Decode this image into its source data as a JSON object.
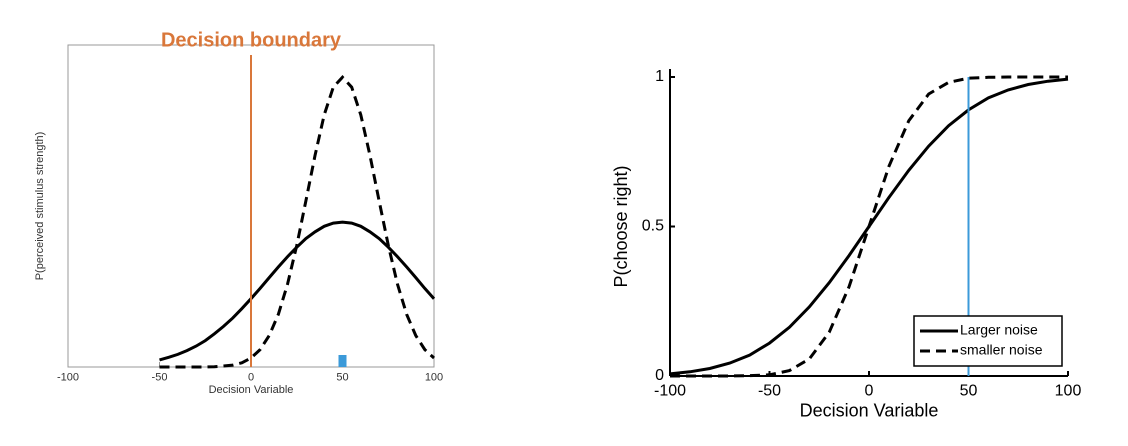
{
  "chart_data": [
    {
      "type": "line",
      "annotation": "Decision boundary",
      "xlabel": "Decision Variable",
      "ylabel": "P(perceived stimulus strength)",
      "x": [
        -50,
        -45,
        -40,
        -35,
        -30,
        -25,
        -20,
        -15,
        -10,
        -5,
        0,
        5,
        10,
        15,
        20,
        25,
        30,
        35,
        40,
        45,
        50,
        55,
        60,
        65,
        70,
        75,
        80,
        85,
        90,
        95,
        100
      ],
      "series": [
        {
          "style": "solid",
          "color": "#000000",
          "values": [
            0.022,
            0.03,
            0.039,
            0.051,
            0.065,
            0.082,
            0.103,
            0.126,
            0.152,
            0.181,
            0.212,
            0.244,
            0.278,
            0.311,
            0.343,
            0.372,
            0.399,
            0.42,
            0.437,
            0.447,
            0.45,
            0.447,
            0.437,
            0.42,
            0.399,
            0.372,
            0.343,
            0.311,
            0.278,
            0.244,
            0.212
          ]
        },
        {
          "style": "dashed",
          "color": "#000000",
          "values": [
            0,
            0,
            0,
            0,
            0,
            0,
            0.001,
            0.003,
            0.006,
            0.013,
            0.028,
            0.054,
            0.098,
            0.164,
            0.258,
            0.378,
            0.516,
            0.658,
            0.783,
            0.869,
            0.9,
            0.869,
            0.783,
            0.658,
            0.516,
            0.378,
            0.258,
            0.164,
            0.098,
            0.054,
            0.028
          ]
        }
      ],
      "vline": {
        "x": 0,
        "color": "#d9773a"
      },
      "marker": {
        "x": 50,
        "color": "#3b9ad9"
      },
      "xlim": [
        -100,
        100
      ],
      "ylim": [
        0,
        1
      ],
      "xticks": [
        -100,
        -50,
        0,
        50,
        100
      ]
    },
    {
      "type": "line",
      "xlabel": "Decision Variable",
      "ylabel": "P(choose right)",
      "x": [
        -100,
        -90,
        -80,
        -70,
        -60,
        -50,
        -40,
        -30,
        -20,
        -10,
        0,
        10,
        20,
        30,
        40,
        50,
        60,
        70,
        80,
        90,
        100
      ],
      "series": [
        {
          "name": "Larger noise",
          "style": "solid",
          "color": "#000000",
          "values": [
            0.007,
            0.014,
            0.025,
            0.043,
            0.07,
            0.11,
            0.163,
            0.231,
            0.312,
            0.403,
            0.5,
            0.597,
            0.688,
            0.769,
            0.837,
            0.89,
            0.93,
            0.957,
            0.975,
            0.986,
            0.993
          ]
        },
        {
          "name": "smaller noise",
          "style": "dashed",
          "color": "#000000",
          "values": [
            0,
            0,
            0,
            0,
            0.001,
            0.004,
            0.018,
            0.057,
            0.146,
            0.299,
            0.5,
            0.701,
            0.854,
            0.943,
            0.982,
            0.996,
            0.999,
            1,
            1,
            1,
            1
          ]
        }
      ],
      "vline": {
        "x": 50,
        "color": "#3b9ad9"
      },
      "legend": "lower right",
      "xlim": [
        -100,
        100
      ],
      "ylim": [
        0,
        1
      ],
      "xticks": [
        -100,
        -50,
        0,
        50,
        100
      ],
      "yticks": [
        0,
        0.5,
        1
      ]
    }
  ]
}
